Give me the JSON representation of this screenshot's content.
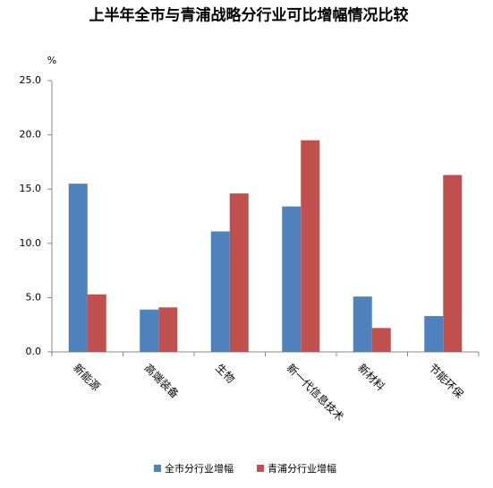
{
  "chart_data": {
    "type": "bar",
    "title": "上半年全市与青浦战略分行业可比增幅情况比较",
    "y_unit": "%",
    "categories": [
      "新能源",
      "高端装备",
      "生物",
      "新一代信息技术",
      "新材料",
      "节能环保"
    ],
    "series": [
      {
        "name": "全市分行业增幅",
        "color": "#4f81bd",
        "values": [
          15.5,
          3.9,
          11.1,
          13.4,
          5.1,
          3.3
        ]
      },
      {
        "name": "青浦分行业增幅",
        "color": "#c0504d",
        "values": [
          5.3,
          4.1,
          14.6,
          19.5,
          2.2,
          16.3
        ]
      }
    ],
    "ylim": [
      0,
      25
    ],
    "yticks": [
      {
        "value": 0,
        "label": "0.0"
      },
      {
        "value": 5,
        "label": "5.0"
      },
      {
        "value": 10,
        "label": "10.0"
      },
      {
        "value": 15,
        "label": "15.0"
      },
      {
        "value": 20,
        "label": "20.0"
      },
      {
        "value": 25,
        "label": "25.0"
      }
    ],
    "grid": false,
    "legend": "bottom"
  }
}
